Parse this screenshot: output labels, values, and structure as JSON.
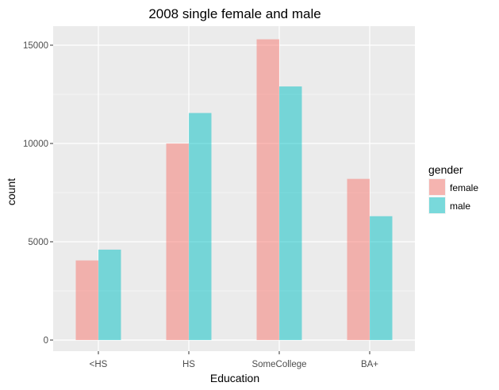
{
  "chart_data": {
    "type": "bar",
    "title": "2008 single female and male",
    "xlabel": "Education",
    "ylabel": "count",
    "categories": [
      "<HS",
      "HS",
      "SomeCollege",
      "BA+"
    ],
    "series": [
      {
        "name": "female",
        "color": "#F8766D",
        "values": [
          4050,
          10000,
          15300,
          8200
        ]
      },
      {
        "name": "male",
        "color": "#00BFC4",
        "values": [
          4600,
          11550,
          12900,
          6300
        ]
      }
    ],
    "ylim": [
      0,
      16000
    ],
    "yticks": [
      0,
      5000,
      10000,
      15000
    ],
    "bar_opacity": 0.5,
    "grid": true,
    "legend": {
      "title": "gender",
      "position": "right"
    },
    "panel_color": "#EBEBEB",
    "grid_color": "#FFFFFF"
  }
}
